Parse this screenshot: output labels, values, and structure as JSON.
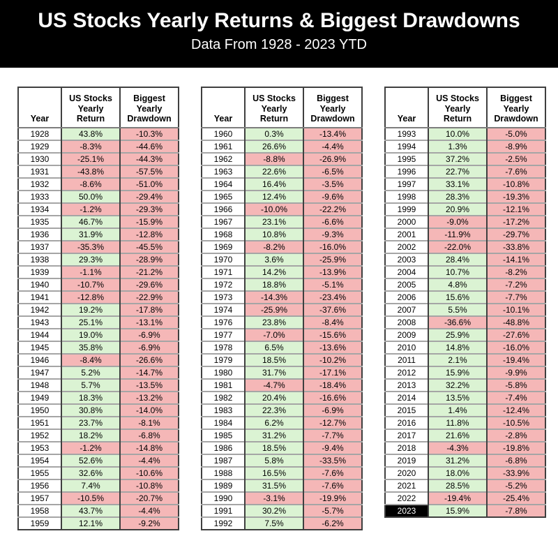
{
  "header": {
    "title": "US Stocks Yearly Returns & Biggest Drawdowns",
    "subtitle": "Data From 1928 - 2023 YTD"
  },
  "columns": {
    "year": "Year",
    "return": "US Stocks\nYearly\nReturn",
    "drawdown": "Biggest\nYearly\nDrawdown"
  },
  "colors": {
    "banner_bg": "#000000",
    "banner_fg": "#ffffff",
    "positive_cell": "#dbf3d3",
    "negative_cell": "#f5b7b7",
    "highlight_year_bg": "#000000",
    "highlight_year_fg": "#ffffff"
  },
  "chart_data": {
    "type": "table",
    "title": "US Stocks Yearly Returns & Biggest Drawdowns",
    "subtitle": "Data From 1928 - 2023 YTD",
    "columns": [
      "Year",
      "US Stocks Yearly Return",
      "Biggest Yearly Drawdown"
    ],
    "highlighted_years": [
      2023
    ],
    "tables": [
      {
        "rows": [
          [
            1928,
            "43.8%",
            "-10.3%"
          ],
          [
            1929,
            "-8.3%",
            "-44.6%"
          ],
          [
            1930,
            "-25.1%",
            "-44.3%"
          ],
          [
            1931,
            "-43.8%",
            "-57.5%"
          ],
          [
            1932,
            "-8.6%",
            "-51.0%"
          ],
          [
            1933,
            "50.0%",
            "-29.4%"
          ],
          [
            1934,
            "-1.2%",
            "-29.3%"
          ],
          [
            1935,
            "46.7%",
            "-15.9%"
          ],
          [
            1936,
            "31.9%",
            "-12.8%"
          ],
          [
            1937,
            "-35.3%",
            "-45.5%"
          ],
          [
            1938,
            "29.3%",
            "-28.9%"
          ],
          [
            1939,
            "-1.1%",
            "-21.2%"
          ],
          [
            1940,
            "-10.7%",
            "-29.6%"
          ],
          [
            1941,
            "-12.8%",
            "-22.9%"
          ],
          [
            1942,
            "19.2%",
            "-17.8%"
          ],
          [
            1943,
            "25.1%",
            "-13.1%"
          ],
          [
            1944,
            "19.0%",
            "-6.9%"
          ],
          [
            1945,
            "35.8%",
            "-6.9%"
          ],
          [
            1946,
            "-8.4%",
            "-26.6%"
          ],
          [
            1947,
            "5.2%",
            "-14.7%"
          ],
          [
            1948,
            "5.7%",
            "-13.5%"
          ],
          [
            1949,
            "18.3%",
            "-13.2%"
          ],
          [
            1950,
            "30.8%",
            "-14.0%"
          ],
          [
            1951,
            "23.7%",
            "-8.1%"
          ],
          [
            1952,
            "18.2%",
            "-6.8%"
          ],
          [
            1953,
            "-1.2%",
            "-14.8%"
          ],
          [
            1954,
            "52.6%",
            "-4.4%"
          ],
          [
            1955,
            "32.6%",
            "-10.6%"
          ],
          [
            1956,
            "7.4%",
            "-10.8%"
          ],
          [
            1957,
            "-10.5%",
            "-20.7%"
          ],
          [
            1958,
            "43.7%",
            "-4.4%"
          ],
          [
            1959,
            "12.1%",
            "-9.2%"
          ]
        ]
      },
      {
        "rows": [
          [
            1960,
            "0.3%",
            "-13.4%"
          ],
          [
            1961,
            "26.6%",
            "-4.4%"
          ],
          [
            1962,
            "-8.8%",
            "-26.9%"
          ],
          [
            1963,
            "22.6%",
            "-6.5%"
          ],
          [
            1964,
            "16.4%",
            "-3.5%"
          ],
          [
            1965,
            "12.4%",
            "-9.6%"
          ],
          [
            1966,
            "-10.0%",
            "-22.2%"
          ],
          [
            1967,
            "23.1%",
            "-6.6%"
          ],
          [
            1968,
            "10.8%",
            "-9.3%"
          ],
          [
            1969,
            "-8.2%",
            "-16.0%"
          ],
          [
            1970,
            "3.6%",
            "-25.9%"
          ],
          [
            1971,
            "14.2%",
            "-13.9%"
          ],
          [
            1972,
            "18.8%",
            "-5.1%"
          ],
          [
            1973,
            "-14.3%",
            "-23.4%"
          ],
          [
            1974,
            "-25.9%",
            "-37.6%"
          ],
          [
            1976,
            "23.8%",
            "-8.4%"
          ],
          [
            1977,
            "-7.0%",
            "-15.6%"
          ],
          [
            1978,
            "6.5%",
            "-13.6%"
          ],
          [
            1979,
            "18.5%",
            "-10.2%"
          ],
          [
            1980,
            "31.7%",
            "-17.1%"
          ],
          [
            1981,
            "-4.7%",
            "-18.4%"
          ],
          [
            1982,
            "20.4%",
            "-16.6%"
          ],
          [
            1983,
            "22.3%",
            "-6.9%"
          ],
          [
            1984,
            "6.2%",
            "-12.7%"
          ],
          [
            1985,
            "31.2%",
            "-7.7%"
          ],
          [
            1986,
            "18.5%",
            "-9.4%"
          ],
          [
            1987,
            "5.8%",
            "-33.5%"
          ],
          [
            1988,
            "16.5%",
            "-7.6%"
          ],
          [
            1989,
            "31.5%",
            "-7.6%"
          ],
          [
            1990,
            "-3.1%",
            "-19.9%"
          ],
          [
            1991,
            "30.2%",
            "-5.7%"
          ],
          [
            1992,
            "7.5%",
            "-6.2%"
          ]
        ]
      },
      {
        "rows": [
          [
            1993,
            "10.0%",
            "-5.0%"
          ],
          [
            1994,
            "1.3%",
            "-8.9%"
          ],
          [
            1995,
            "37.2%",
            "-2.5%"
          ],
          [
            1996,
            "22.7%",
            "-7.6%"
          ],
          [
            1997,
            "33.1%",
            "-10.8%"
          ],
          [
            1998,
            "28.3%",
            "-19.3%"
          ],
          [
            1999,
            "20.9%",
            "-12.1%"
          ],
          [
            2000,
            "-9.0%",
            "-17.2%"
          ],
          [
            2001,
            "-11.9%",
            "-29.7%"
          ],
          [
            2002,
            "-22.0%",
            "-33.8%"
          ],
          [
            2003,
            "28.4%",
            "-14.1%"
          ],
          [
            2004,
            "10.7%",
            "-8.2%"
          ],
          [
            2005,
            "4.8%",
            "-7.2%"
          ],
          [
            2006,
            "15.6%",
            "-7.7%"
          ],
          [
            2007,
            "5.5%",
            "-10.1%"
          ],
          [
            2008,
            "-36.6%",
            "-48.8%"
          ],
          [
            2009,
            "25.9%",
            "-27.6%"
          ],
          [
            2010,
            "14.8%",
            "-16.0%"
          ],
          [
            2011,
            "2.1%",
            "-19.4%"
          ],
          [
            2012,
            "15.9%",
            "-9.9%"
          ],
          [
            2013,
            "32.2%",
            "-5.8%"
          ],
          [
            2014,
            "13.5%",
            "-7.4%"
          ],
          [
            2015,
            "1.4%",
            "-12.4%"
          ],
          [
            2016,
            "11.8%",
            "-10.5%"
          ],
          [
            2017,
            "21.6%",
            "-2.8%"
          ],
          [
            2018,
            "-4.3%",
            "-19.8%"
          ],
          [
            2019,
            "31.2%",
            "-6.8%"
          ],
          [
            2020,
            "18.0%",
            "-33.9%"
          ],
          [
            2021,
            "28.5%",
            "-5.2%"
          ],
          [
            2022,
            "-19.4%",
            "-25.4%"
          ],
          [
            2023,
            "15.9%",
            "-7.8%"
          ]
        ]
      }
    ]
  }
}
